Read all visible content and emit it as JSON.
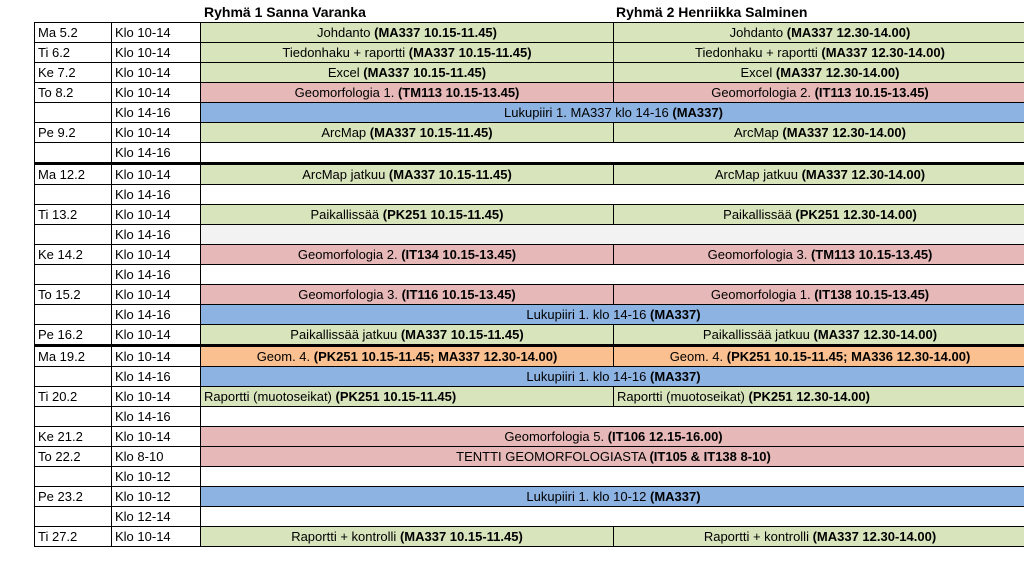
{
  "headers": {
    "group1": "Ryhmä 1 Sanna Varanka",
    "group2": "Ryhmä 2 Henriikka Salminen"
  },
  "colors": {
    "green": "#d7e4bc",
    "red": "#e6b9b8",
    "blue": "#8db3e2",
    "orange": "#fac090",
    "grey": "#f2f2f2"
  },
  "rows": [
    {
      "day": "Ma 5.2",
      "time": "Klo 10-14",
      "cells": [
        {
          "text": "Johdanto ",
          "bold": "(MA337 10.15-11.45)",
          "color": "green"
        },
        {
          "text": "Johdanto ",
          "bold": "(MA337 12.30-14.00)",
          "color": "green"
        }
      ]
    },
    {
      "day": "Ti 6.2",
      "time": "Klo 10-14",
      "cells": [
        {
          "text": "Tiedonhaku + raportti ",
          "bold": "(MA337 10.15-11.45)",
          "color": "green"
        },
        {
          "text": "Tiedonhaku + raportti ",
          "bold": "(MA337 12.30-14.00)",
          "color": "green"
        }
      ]
    },
    {
      "day": "Ke 7.2",
      "time": "Klo 10-14",
      "cells": [
        {
          "text": "Excel ",
          "bold": "(MA337 10.15-11.45)",
          "color": "green"
        },
        {
          "text": "Excel ",
          "bold": "(MA337 12.30-14.00)",
          "color": "green"
        }
      ]
    },
    {
      "day": "To 8.2",
      "time": "Klo 10-14",
      "cells": [
        {
          "text": "Geomorfologia 1.  ",
          "bold": "(TM113 10.15-13.45)",
          "color": "red"
        },
        {
          "text": "Geomorfologia 2. ",
          "bold": "(IT113 10.15-13.45)",
          "color": "red"
        }
      ]
    },
    {
      "day": "",
      "time": "Klo 14-16",
      "cells": [
        {
          "text": "Lukupiiri 1. MA337 klo 14-16 ",
          "bold": "(MA337)",
          "color": "blue",
          "span": 2
        }
      ]
    },
    {
      "day": "Pe 9.2",
      "time": "Klo 10-14",
      "cells": [
        {
          "text": "ArcMap ",
          "bold": "(MA337 10.15-11.45)",
          "color": "green"
        },
        {
          "text": "ArcMap ",
          "bold": "(MA337 12.30-14.00)",
          "color": "green"
        }
      ]
    },
    {
      "day": "",
      "time": "Klo 14-16",
      "cells": [
        {
          "text": "",
          "bold": "",
          "color": "white",
          "span": 2
        }
      ],
      "noborder": true
    },
    {
      "day": "Ma 12.2",
      "time": "Klo 10-14",
      "cells": [
        {
          "text": "ArcMap jatkuu ",
          "bold": "(MA337 10.15-11.45)",
          "color": "green"
        },
        {
          "text": "ArcMap jatkuu ",
          "bold": "(MA337 12.30-14.00)",
          "color": "green"
        }
      ],
      "week": true
    },
    {
      "day": "",
      "time": "Klo 14-16",
      "cells": [
        {
          "text": "",
          "bold": "",
          "color": "white",
          "span": 2
        }
      ]
    },
    {
      "day": "Ti 13.2",
      "time": "Klo 10-14",
      "cells": [
        {
          "text": "Paikallissää ",
          "bold": "(PK251 10.15-11.45)",
          "color": "green"
        },
        {
          "text": "Paikallissää ",
          "bold": "(PK251 12.30-14.00)",
          "color": "green"
        }
      ]
    },
    {
      "day": "",
      "time": "Klo 14-16",
      "cells": [
        {
          "text": "",
          "bold": "",
          "color": "grey",
          "span": 2
        }
      ]
    },
    {
      "day": "Ke 14.2",
      "time": "Klo 10-14",
      "cells": [
        {
          "text": "Geomorfologia 2. ",
          "bold": "(IT134 10.15-13.45)",
          "color": "red"
        },
        {
          "text": "Geomorfologia 3. ",
          "bold": "(TM113 10.15-13.45)",
          "color": "red"
        }
      ]
    },
    {
      "day": "",
      "time": "Klo 14-16",
      "cells": [
        {
          "text": "",
          "bold": "",
          "color": "white",
          "span": 2
        }
      ]
    },
    {
      "day": "To 15.2",
      "time": "Klo 10-14",
      "cells": [
        {
          "text": "Geomorfologia 3.  ",
          "bold": "(IT116 10.15-13.45)",
          "color": "red"
        },
        {
          "text": "Geomorfologia 1. ",
          "bold": "(IT138 10.15-13.45)",
          "color": "red"
        }
      ]
    },
    {
      "day": "",
      "time": "Klo 14-16",
      "cells": [
        {
          "text": "Lukupiiri 1. klo 14-16 ",
          "bold": "(MA337)",
          "color": "blue",
          "span": 2
        }
      ]
    },
    {
      "day": "Pe 16.2",
      "time": "Klo 10-14",
      "cells": [
        {
          "text": "Paikallissää jatkuu ",
          "bold": "(MA337 10.15-11.45)",
          "color": "green"
        },
        {
          "text": "Paikallissää jatkuu ",
          "bold": "(MA337 12.30-14.00)",
          "color": "green"
        }
      ]
    },
    {
      "day": "Ma 19.2",
      "time": "Klo 10-14",
      "cells": [
        {
          "text": "Geom. 4. ",
          "bold": "(PK251 10.15-11.45; MA337 12.30-14.00)",
          "color": "orange"
        },
        {
          "text": "Geom. 4. ",
          "bold": "(PK251 10.15-11.45; MA336 12.30-14.00)",
          "color": "orange"
        }
      ],
      "week": true
    },
    {
      "day": "",
      "time": "Klo 14-16",
      "cells": [
        {
          "text": "Lukupiiri 1. klo 14-16 ",
          "bold": "(MA337)",
          "color": "blue",
          "span": 2
        }
      ]
    },
    {
      "day": "Ti 20.2",
      "time": "Klo 10-14",
      "cells": [
        {
          "text": "Raportti (muotoseikat) ",
          "bold": "(PK251 10.15-11.45)",
          "color": "green",
          "align": "left"
        },
        {
          "text": "Raportti (muotoseikat) ",
          "bold": "(PK251 12.30-14.00)",
          "color": "green",
          "align": "left"
        }
      ]
    },
    {
      "day": "",
      "time": "Klo 14-16",
      "cells": [
        {
          "text": "",
          "bold": "",
          "color": "white",
          "span": 2
        }
      ]
    },
    {
      "day": "Ke 21.2",
      "time": "Klo 10-14",
      "cells": [
        {
          "text": "Geomorfologia 5. ",
          "bold": "(IT106 12.15-16.00)",
          "color": "red",
          "span": 2
        }
      ]
    },
    {
      "day": "To 22.2",
      "time": "Klo 8-10",
      "cells": [
        {
          "text": "TENTTI GEOMORFOLOGIASTA  ",
          "bold": "(IT105 & IT138 8-10)",
          "color": "red",
          "span": 2
        }
      ]
    },
    {
      "day": "",
      "time": "Klo 10-12",
      "cells": [
        {
          "text": "",
          "bold": "",
          "color": "white",
          "span": 2
        }
      ]
    },
    {
      "day": "Pe 23.2",
      "time": "Klo 10-12",
      "cells": [
        {
          "text": "Lukupiiri 1. klo 10-12 ",
          "bold": "(MA337)",
          "color": "blue",
          "span": 2
        }
      ]
    },
    {
      "day": "",
      "time": "Klo 12-14",
      "cells": [
        {
          "text": "",
          "bold": "",
          "color": "white",
          "span": 2
        }
      ]
    },
    {
      "day": "Ti 27.2",
      "time": "Klo 10-14",
      "cells": [
        {
          "text": "Raportti + kontrolli ",
          "bold": "(MA337 10.15-11.45)",
          "color": "green"
        },
        {
          "text": "Raportti + kontrolli ",
          "bold": "(MA337 12.30-14.00)",
          "color": "green"
        }
      ]
    }
  ]
}
